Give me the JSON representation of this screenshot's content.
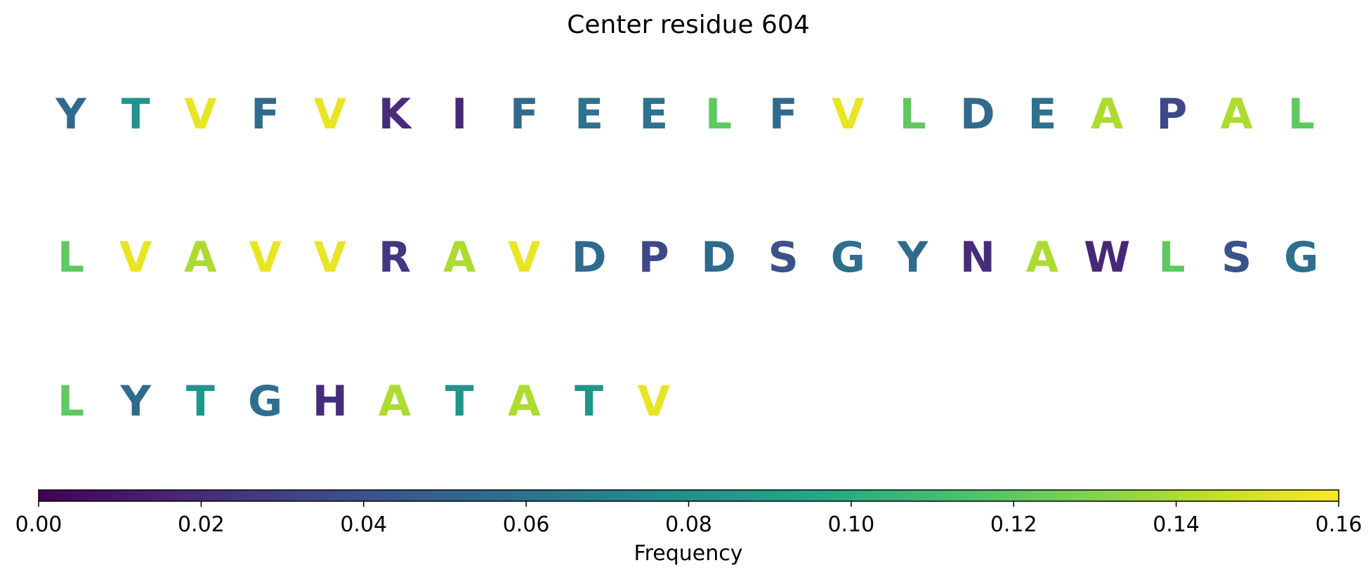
{
  "chart_data": {
    "type": "sequence-logo",
    "title": "Center residue 604",
    "residues_per_row": 20,
    "residues": [
      {
        "letter": "Y",
        "frequency": 0.055
      },
      {
        "letter": "T",
        "frequency": 0.083
      },
      {
        "letter": "V",
        "frequency": 0.155
      },
      {
        "letter": "F",
        "frequency": 0.055
      },
      {
        "letter": "V",
        "frequency": 0.155
      },
      {
        "letter": "K",
        "frequency": 0.02
      },
      {
        "letter": "I",
        "frequency": 0.018
      },
      {
        "letter": "F",
        "frequency": 0.055
      },
      {
        "letter": "E",
        "frequency": 0.06
      },
      {
        "letter": "E",
        "frequency": 0.06
      },
      {
        "letter": "L",
        "frequency": 0.12
      },
      {
        "letter": "F",
        "frequency": 0.055
      },
      {
        "letter": "V",
        "frequency": 0.155
      },
      {
        "letter": "L",
        "frequency": 0.12
      },
      {
        "letter": "D",
        "frequency": 0.055
      },
      {
        "letter": "E",
        "frequency": 0.06
      },
      {
        "letter": "A",
        "frequency": 0.14
      },
      {
        "letter": "P",
        "frequency": 0.035
      },
      {
        "letter": "A",
        "frequency": 0.14
      },
      {
        "letter": "L",
        "frequency": 0.12
      },
      {
        "letter": "L",
        "frequency": 0.12
      },
      {
        "letter": "V",
        "frequency": 0.155
      },
      {
        "letter": "A",
        "frequency": 0.14
      },
      {
        "letter": "V",
        "frequency": 0.155
      },
      {
        "letter": "V",
        "frequency": 0.155
      },
      {
        "letter": "R",
        "frequency": 0.025
      },
      {
        "letter": "A",
        "frequency": 0.14
      },
      {
        "letter": "V",
        "frequency": 0.155
      },
      {
        "letter": "D",
        "frequency": 0.055
      },
      {
        "letter": "P",
        "frequency": 0.035
      },
      {
        "letter": "D",
        "frequency": 0.055
      },
      {
        "letter": "S",
        "frequency": 0.04
      },
      {
        "letter": "G",
        "frequency": 0.058
      },
      {
        "letter": "Y",
        "frequency": 0.055
      },
      {
        "letter": "N",
        "frequency": 0.02
      },
      {
        "letter": "A",
        "frequency": 0.14
      },
      {
        "letter": "W",
        "frequency": 0.018
      },
      {
        "letter": "L",
        "frequency": 0.12
      },
      {
        "letter": "S",
        "frequency": 0.04
      },
      {
        "letter": "G",
        "frequency": 0.058
      },
      {
        "letter": "L",
        "frequency": 0.12
      },
      {
        "letter": "Y",
        "frequency": 0.055
      },
      {
        "letter": "T",
        "frequency": 0.083
      },
      {
        "letter": "G",
        "frequency": 0.058
      },
      {
        "letter": "H",
        "frequency": 0.02
      },
      {
        "letter": "A",
        "frequency": 0.14
      },
      {
        "letter": "T",
        "frequency": 0.083
      },
      {
        "letter": "A",
        "frequency": 0.14
      },
      {
        "letter": "T",
        "frequency": 0.083
      },
      {
        "letter": "V",
        "frequency": 0.155
      }
    ],
    "colorbar": {
      "label": "Frequency",
      "colormap": "viridis",
      "range": [
        0,
        0.16
      ],
      "tick_labels": [
        "0.00",
        "0.02",
        "0.04",
        "0.06",
        "0.08",
        "0.10",
        "0.12",
        "0.14",
        "0.16"
      ],
      "tick_values": [
        0,
        0.02,
        0.04,
        0.06,
        0.08,
        0.1,
        0.12,
        0.14,
        0.16
      ]
    }
  }
}
